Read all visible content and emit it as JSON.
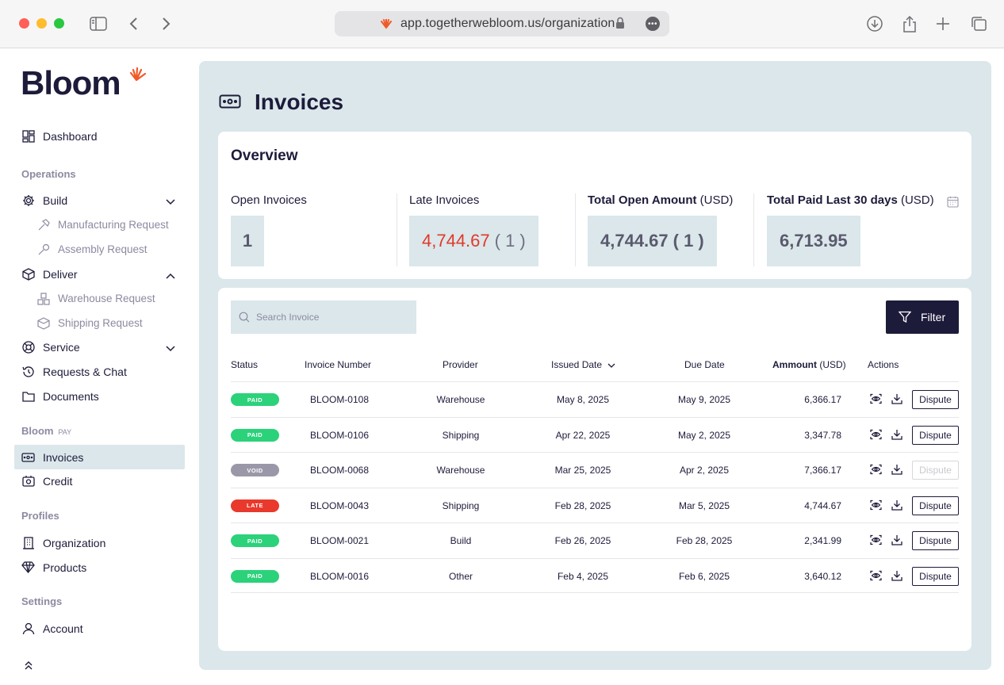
{
  "browser": {
    "url": "app.togetherwebloom.us/organization"
  },
  "sidebar": {
    "logo": "Bloom",
    "dashboard": "Dashboard",
    "operations_heading": "Operations",
    "build": "Build",
    "manufacturing_request": "Manufacturing Request",
    "assembly_request": "Assembly Request",
    "deliver": "Deliver",
    "warehouse_request": "Warehouse Request",
    "shipping_request": "Shipping Request",
    "service": "Service",
    "requests_chat": "Requests & Chat",
    "documents": "Documents",
    "pay_heading": "Bloom",
    "pay_suffix": "PAY",
    "invoices": "Invoices",
    "credit": "Credit",
    "profiles_heading": "Profiles",
    "organization": "Organization",
    "products": "Products",
    "settings_heading": "Settings",
    "account": "Account"
  },
  "main": {
    "title": "Invoices",
    "overview": {
      "title": "Overview",
      "open_invoices_label": "Open Invoices",
      "open_invoices_value": "1",
      "late_invoices_label": "Late Invoices",
      "late_invoices_amount": "4,744.67",
      "late_invoices_count": "( 1 )",
      "total_open_label": "Total Open Amount",
      "total_open_unit": " (USD)",
      "total_open_amount": "4,744.67",
      "total_open_count": "( 1 )",
      "total_paid_label": "Total Paid Last 30 days",
      "total_paid_unit": " (USD)",
      "total_paid_amount": "6,713.95"
    },
    "search_placeholder": "Search Invoice",
    "filter_label": "Filter",
    "columns": {
      "status": "Status",
      "invoice_number": "Invoice Number",
      "provider": "Provider",
      "issued_date": "Issued Date",
      "due_date": "Due Date",
      "amount": "Ammount",
      "amount_unit": " (USD)",
      "actions": "Actions"
    },
    "dispute_label": "Dispute",
    "rows": [
      {
        "status": "PAID",
        "invoice": "BLOOM-0108",
        "provider": "Warehouse",
        "issued": "May 8, 2025",
        "due": "May 9, 2025",
        "amount": "6,366.17"
      },
      {
        "status": "PAID",
        "invoice": "BLOOM-0106",
        "provider": "Shipping",
        "issued": "Apr 22, 2025",
        "due": "May 2, 2025",
        "amount": "3,347.78"
      },
      {
        "status": "VOID",
        "invoice": "BLOOM-0068",
        "provider": "Warehouse",
        "issued": "Mar 25, 2025",
        "due": "Apr 2, 2025",
        "amount": "7,366.17"
      },
      {
        "status": "LATE",
        "invoice": "BLOOM-0043",
        "provider": "Shipping",
        "issued": "Feb 28, 2025",
        "due": "Mar 5, 2025",
        "amount": "4,744.67"
      },
      {
        "status": "PAID",
        "invoice": "BLOOM-0021",
        "provider": "Build",
        "issued": "Feb 26, 2025",
        "due": "Feb 28, 2025",
        "amount": "2,341.99"
      },
      {
        "status": "PAID",
        "invoice": "BLOOM-0016",
        "provider": "Other",
        "issued": "Feb 4, 2025",
        "due": "Feb 6, 2025",
        "amount": "3,640.12"
      }
    ]
  },
  "colors": {
    "paid": "#2bd27a",
    "void": "#9a98a8",
    "late": "#e8392c",
    "navy": "#1d1b3a",
    "panel": "#dbe7ea"
  }
}
